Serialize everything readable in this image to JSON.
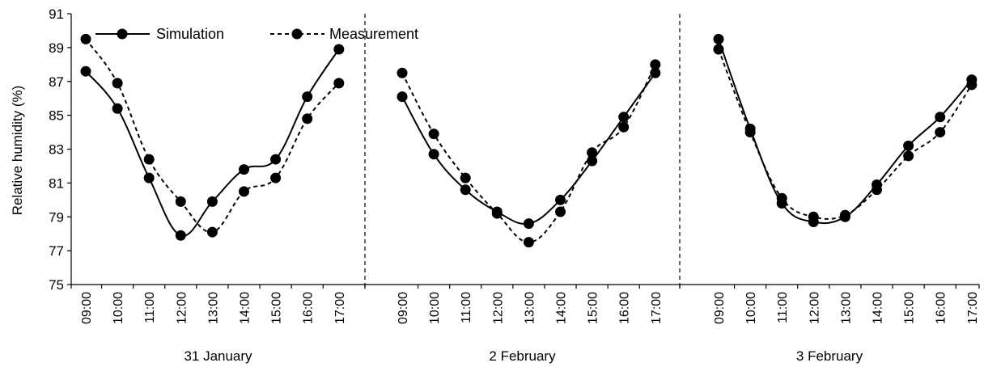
{
  "chart_data": {
    "type": "line",
    "ylabel": "Relative humidity (%)",
    "ylim": [
      75,
      91
    ],
    "yticks": [
      75,
      77,
      79,
      81,
      83,
      85,
      87,
      89,
      91
    ],
    "grid": false,
    "legend_position": "top-left",
    "x": [
      "09:00",
      "10:00",
      "11:00",
      "12:00",
      "13:00",
      "14:00",
      "15:00",
      "16:00",
      "17:00"
    ],
    "groups": [
      {
        "label": "31 January",
        "series": [
          {
            "name": "Simulation",
            "values": [
              87.6,
              85.4,
              81.3,
              77.9,
              79.9,
              81.8,
              82.4,
              86.1,
              88.9
            ]
          },
          {
            "name": "Measurement",
            "values": [
              89.5,
              86.9,
              82.4,
              79.9,
              78.1,
              80.5,
              81.3,
              84.8,
              86.9
            ]
          }
        ]
      },
      {
        "label": "2 February",
        "series": [
          {
            "name": "Simulation",
            "values": [
              86.1,
              82.7,
              80.6,
              79.3,
              78.6,
              80.0,
              82.3,
              84.9,
              87.5
            ]
          },
          {
            "name": "Measurement",
            "values": [
              87.5,
              83.9,
              81.3,
              79.2,
              77.5,
              79.3,
              82.8,
              84.3,
              88.0
            ]
          }
        ]
      },
      {
        "label": "3 February",
        "series": [
          {
            "name": "Simulation",
            "values": [
              89.5,
              84.2,
              79.8,
              78.7,
              79.0,
              80.9,
              83.2,
              84.9,
              87.1
            ]
          },
          {
            "name": "Measurement",
            "values": [
              88.9,
              84.0,
              80.1,
              79.0,
              79.1,
              80.6,
              82.6,
              84.0,
              86.8
            ]
          }
        ]
      }
    ],
    "legend": [
      {
        "name": "Simulation",
        "style": "solid"
      },
      {
        "name": "Measurement",
        "style": "dashed"
      }
    ],
    "line_color": "#000000"
  }
}
